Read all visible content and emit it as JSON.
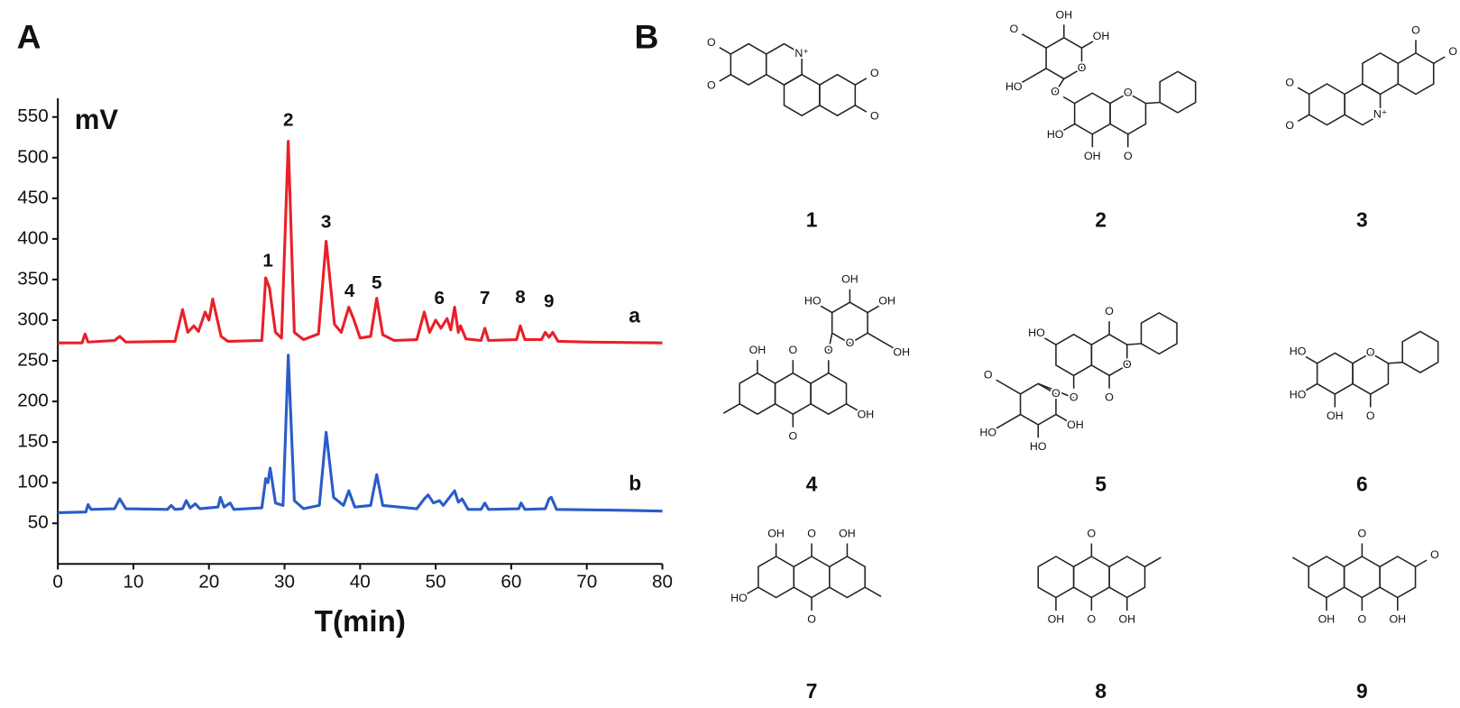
{
  "chart_data": {
    "type": "line",
    "panel_label": "A",
    "y_label": "mV",
    "x_label": "T(min)",
    "xlim": [
      0,
      80
    ],
    "xticks": [
      0,
      10,
      20,
      30,
      40,
      50,
      60,
      70,
      80
    ],
    "ylim": [
      0,
      550
    ],
    "yticks": [
      50,
      100,
      150,
      200,
      250,
      300,
      350,
      400,
      450,
      500,
      550
    ],
    "grid": false,
    "annotations": [
      "1",
      "2",
      "3",
      "4",
      "5",
      "6",
      "7",
      "8",
      "9"
    ],
    "series": [
      {
        "name": "a",
        "color": "#e8202a",
        "x": [
          0,
          3.2,
          3.6,
          4,
          7.5,
          8.2,
          9,
          15.5,
          16.5,
          17.2,
          18,
          18.6,
          19.5,
          20,
          20.5,
          21,
          21.6,
          22.5,
          27,
          27.5,
          28,
          28.8,
          29.6,
          30.5,
          31.3,
          32.5,
          34.5,
          35.5,
          36.6,
          37.5,
          38.5,
          39.2,
          40,
          41.4,
          42.2,
          43,
          44.5,
          47.5,
          48.5,
          49.2,
          50,
          50.7,
          51.5,
          52,
          52.5,
          53,
          53.3,
          54,
          56,
          56.5,
          57,
          60.7,
          61.2,
          61.8,
          64,
          64.5,
          65,
          65.5,
          66.2,
          70,
          80
        ],
        "values": [
          272,
          272,
          283,
          273,
          275,
          280,
          273,
          274,
          313,
          285,
          293,
          286,
          310,
          300,
          326,
          305,
          280,
          274,
          275,
          352,
          340,
          285,
          278,
          520,
          285,
          276,
          283,
          397,
          295,
          285,
          316,
          300,
          278,
          280,
          327,
          282,
          275,
          276,
          310,
          285,
          300,
          290,
          302,
          288,
          316,
          285,
          293,
          277,
          275,
          290,
          275,
          276,
          293,
          276,
          276,
          285,
          279,
          285,
          274,
          273,
          272
        ]
      },
      {
        "name": "b",
        "color": "#2a5cc8",
        "x": [
          0,
          3.7,
          4,
          4.4,
          7.5,
          8.2,
          9,
          14.5,
          15,
          15.5,
          16.5,
          17,
          17.5,
          18.2,
          18.8,
          21.2,
          21.5,
          22,
          22.8,
          23.3,
          27,
          27.5,
          27.8,
          28.1,
          28.8,
          29.8,
          30.5,
          31.3,
          32.5,
          34.6,
          35.5,
          36.5,
          37.8,
          38.5,
          39.3,
          41.4,
          42.2,
          43,
          47.5,
          48.5,
          49,
          49.7,
          50.5,
          51,
          52.5,
          53,
          53.5,
          54.3,
          56,
          56.5,
          57,
          61,
          61.3,
          61.8,
          64.5,
          65,
          65.3,
          66,
          75,
          80
        ],
        "values": [
          63,
          64,
          73,
          67,
          68,
          80,
          68,
          67,
          72,
          67,
          68,
          78,
          69,
          74,
          68,
          70,
          82,
          70,
          75,
          67,
          69,
          105,
          100,
          118,
          75,
          72,
          257,
          78,
          68,
          72,
          162,
          82,
          72,
          90,
          70,
          72,
          110,
          72,
          68,
          80,
          85,
          75,
          78,
          72,
          90,
          76,
          80,
          67,
          67,
          75,
          67,
          68,
          75,
          67,
          68,
          80,
          82,
          67,
          66,
          65
        ]
      }
    ]
  },
  "diagram": {
    "panel_label": "B",
    "structures": [
      {
        "label": "1",
        "atoms": [
          "O",
          "O",
          "N⁺",
          "O",
          "O"
        ]
      },
      {
        "label": "2",
        "atoms": [
          "O",
          "HO",
          "OH",
          "OH",
          "O",
          "O",
          "O",
          "HO",
          "OH",
          "O"
        ]
      },
      {
        "label": "3",
        "atoms": [
          "O",
          "O",
          "N⁺",
          "O",
          "O"
        ]
      },
      {
        "label": "4",
        "atoms": [
          "OH",
          "HO",
          "OH",
          "O",
          "OH",
          "OH",
          "O",
          "O",
          "OH",
          "O"
        ]
      },
      {
        "label": "5",
        "atoms": [
          "O",
          "O",
          "HO",
          "O",
          "O",
          "O",
          "O",
          "HO",
          "HO",
          "OH"
        ]
      },
      {
        "label": "6",
        "atoms": [
          "HO",
          "HO",
          "OH",
          "O",
          "O"
        ]
      },
      {
        "label": "7",
        "atoms": [
          "OH",
          "O",
          "OH",
          "HO",
          "O"
        ]
      },
      {
        "label": "8",
        "atoms": [
          "O",
          "OH",
          "O",
          "OH"
        ]
      },
      {
        "label": "9",
        "atoms": [
          "O",
          "OH",
          "O",
          "OH",
          "O"
        ]
      }
    ]
  }
}
